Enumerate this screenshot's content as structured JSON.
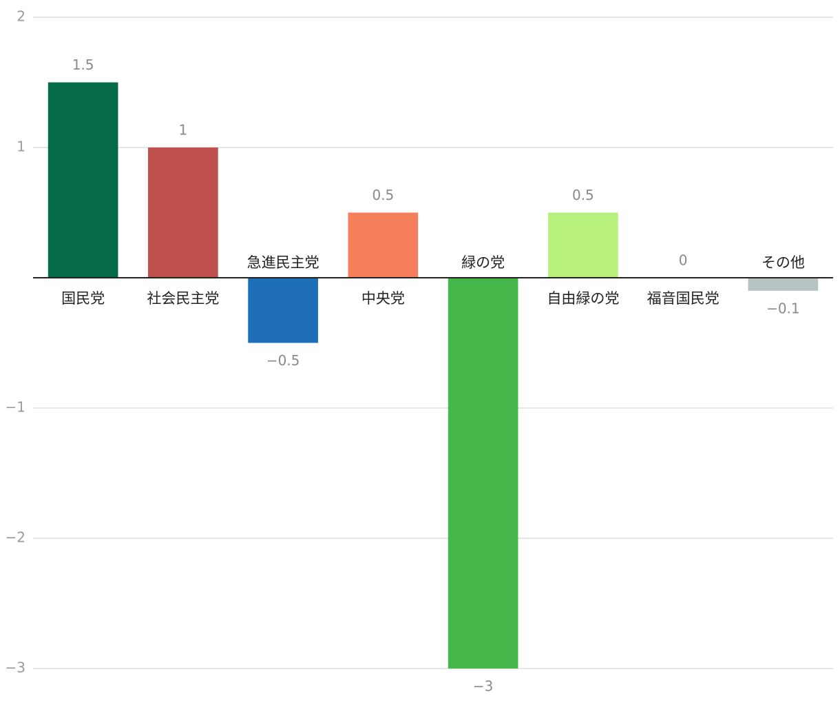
{
  "chart_data": {
    "type": "bar",
    "categories": [
      "国民党",
      "社会民主党",
      "急進民主党",
      "中央党",
      "緑の党",
      "自由緑の党",
      "福音国民党",
      "その他"
    ],
    "values": [
      1.5,
      1,
      -0.5,
      0.5,
      -3,
      0.5,
      0,
      -0.1
    ],
    "value_labels": [
      "1.5",
      "1",
      "−0.5",
      "0.5",
      "−3",
      "0.5",
      "0",
      "−0.1"
    ],
    "colors": [
      "#046a48",
      "#bf504e",
      "#1f6fb8",
      "#f47f5a",
      "#45b649",
      "#b8f07c",
      "#999999",
      "#b5c4c3"
    ],
    "ylim": [
      -3,
      2
    ],
    "yticks": [
      2,
      1,
      {
        "value": -1,
        "label": "−1"
      },
      {
        "value": -2,
        "label": "−2"
      },
      {
        "value": -3,
        "label": "−3"
      }
    ],
    "grid": true
  }
}
